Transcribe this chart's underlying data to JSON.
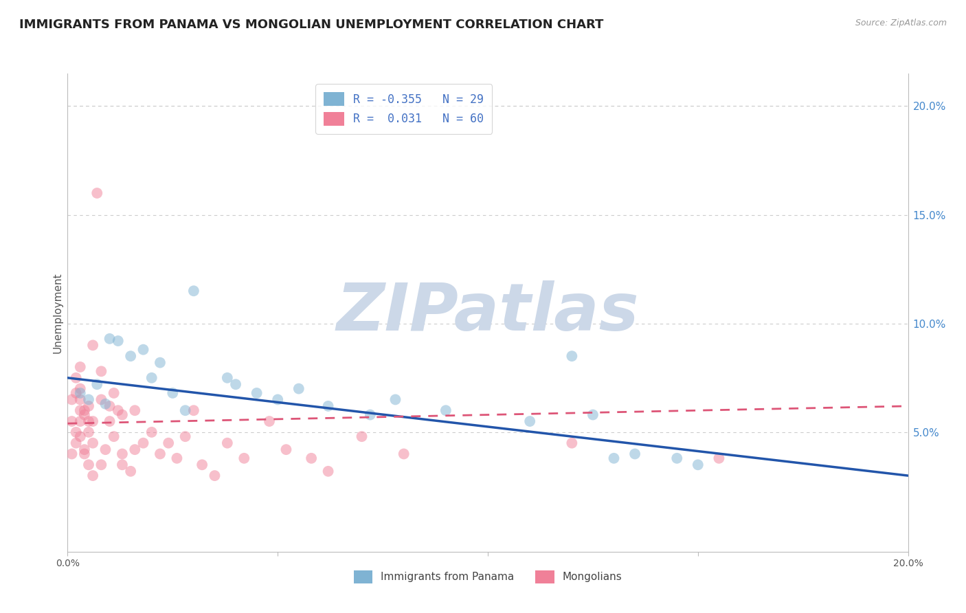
{
  "title": "IMMIGRANTS FROM PANAMA VS MONGOLIAN UNEMPLOYMENT CORRELATION CHART",
  "source": "Source: ZipAtlas.com",
  "ylabel": "Unemployment",
  "xlim": [
    0.0,
    0.2
  ],
  "ylim": [
    -0.005,
    0.215
  ],
  "xticks": [
    0.0,
    0.05,
    0.1,
    0.15,
    0.2
  ],
  "xticklabels": [
    "0.0%",
    "",
    "",
    "",
    "20.0%"
  ],
  "yticks_right": [
    0.05,
    0.1,
    0.15,
    0.2
  ],
  "ytick_right_labels": [
    "5.0%",
    "10.0%",
    "15.0%",
    "20.0%"
  ],
  "legend_entries": [
    {
      "label": "R = -0.355   N = 29",
      "color": "#a8c4e0"
    },
    {
      "label": "R =  0.031   N = 60",
      "color": "#f4a0b0"
    }
  ],
  "legend_bottom": [
    {
      "label": "Immigrants from Panama",
      "color": "#a8c4e0"
    },
    {
      "label": "Mongolians",
      "color": "#f4a0b0"
    }
  ],
  "blue_scatter": [
    [
      0.003,
      0.068
    ],
    [
      0.005,
      0.065
    ],
    [
      0.007,
      0.072
    ],
    [
      0.009,
      0.063
    ],
    [
      0.01,
      0.093
    ],
    [
      0.012,
      0.092
    ],
    [
      0.015,
      0.085
    ],
    [
      0.018,
      0.088
    ],
    [
      0.02,
      0.075
    ],
    [
      0.022,
      0.082
    ],
    [
      0.025,
      0.068
    ],
    [
      0.028,
      0.06
    ],
    [
      0.03,
      0.115
    ],
    [
      0.038,
      0.075
    ],
    [
      0.04,
      0.072
    ],
    [
      0.045,
      0.068
    ],
    [
      0.05,
      0.065
    ],
    [
      0.055,
      0.07
    ],
    [
      0.062,
      0.062
    ],
    [
      0.072,
      0.058
    ],
    [
      0.078,
      0.065
    ],
    [
      0.09,
      0.06
    ],
    [
      0.11,
      0.055
    ],
    [
      0.12,
      0.085
    ],
    [
      0.125,
      0.058
    ],
    [
      0.13,
      0.038
    ],
    [
      0.135,
      0.04
    ],
    [
      0.145,
      0.038
    ],
    [
      0.15,
      0.035
    ]
  ],
  "pink_scatter": [
    [
      0.001,
      0.04
    ],
    [
      0.001,
      0.055
    ],
    [
      0.001,
      0.065
    ],
    [
      0.002,
      0.05
    ],
    [
      0.002,
      0.068
    ],
    [
      0.002,
      0.075
    ],
    [
      0.002,
      0.045
    ],
    [
      0.003,
      0.06
    ],
    [
      0.003,
      0.08
    ],
    [
      0.003,
      0.055
    ],
    [
      0.003,
      0.065
    ],
    [
      0.003,
      0.07
    ],
    [
      0.003,
      0.048
    ],
    [
      0.004,
      0.06
    ],
    [
      0.004,
      0.042
    ],
    [
      0.004,
      0.058
    ],
    [
      0.004,
      0.04
    ],
    [
      0.005,
      0.062
    ],
    [
      0.005,
      0.05
    ],
    [
      0.005,
      0.055
    ],
    [
      0.005,
      0.035
    ],
    [
      0.006,
      0.09
    ],
    [
      0.006,
      0.055
    ],
    [
      0.006,
      0.045
    ],
    [
      0.006,
      0.03
    ],
    [
      0.007,
      0.16
    ],
    [
      0.008,
      0.078
    ],
    [
      0.008,
      0.065
    ],
    [
      0.008,
      0.035
    ],
    [
      0.009,
      0.042
    ],
    [
      0.01,
      0.055
    ],
    [
      0.01,
      0.062
    ],
    [
      0.011,
      0.068
    ],
    [
      0.011,
      0.048
    ],
    [
      0.012,
      0.06
    ],
    [
      0.013,
      0.058
    ],
    [
      0.013,
      0.04
    ],
    [
      0.013,
      0.035
    ],
    [
      0.015,
      0.032
    ],
    [
      0.016,
      0.06
    ],
    [
      0.016,
      0.042
    ],
    [
      0.018,
      0.045
    ],
    [
      0.02,
      0.05
    ],
    [
      0.022,
      0.04
    ],
    [
      0.024,
      0.045
    ],
    [
      0.026,
      0.038
    ],
    [
      0.028,
      0.048
    ],
    [
      0.03,
      0.06
    ],
    [
      0.032,
      0.035
    ],
    [
      0.035,
      0.03
    ],
    [
      0.038,
      0.045
    ],
    [
      0.042,
      0.038
    ],
    [
      0.048,
      0.055
    ],
    [
      0.052,
      0.042
    ],
    [
      0.058,
      0.038
    ],
    [
      0.062,
      0.032
    ],
    [
      0.07,
      0.048
    ],
    [
      0.08,
      0.04
    ],
    [
      0.12,
      0.045
    ],
    [
      0.155,
      0.038
    ]
  ],
  "blue_line_x": [
    0.0,
    0.2
  ],
  "blue_line_y": [
    0.075,
    0.03
  ],
  "pink_line_x": [
    0.0,
    0.2
  ],
  "pink_line_y": [
    0.054,
    0.062
  ],
  "watermark": "ZIPatlas",
  "watermark_color": "#ccd8e8",
  "scatter_alpha": 0.5,
  "scatter_size": 130,
  "blue_color": "#7fb3d3",
  "pink_color": "#f08098",
  "blue_line_color": "#2255aa",
  "pink_line_color": "#dd5577",
  "grid_color": "#cccccc",
  "background_color": "#ffffff",
  "title_fontsize": 13,
  "axis_label_fontsize": 11,
  "tick_fontsize": 10
}
